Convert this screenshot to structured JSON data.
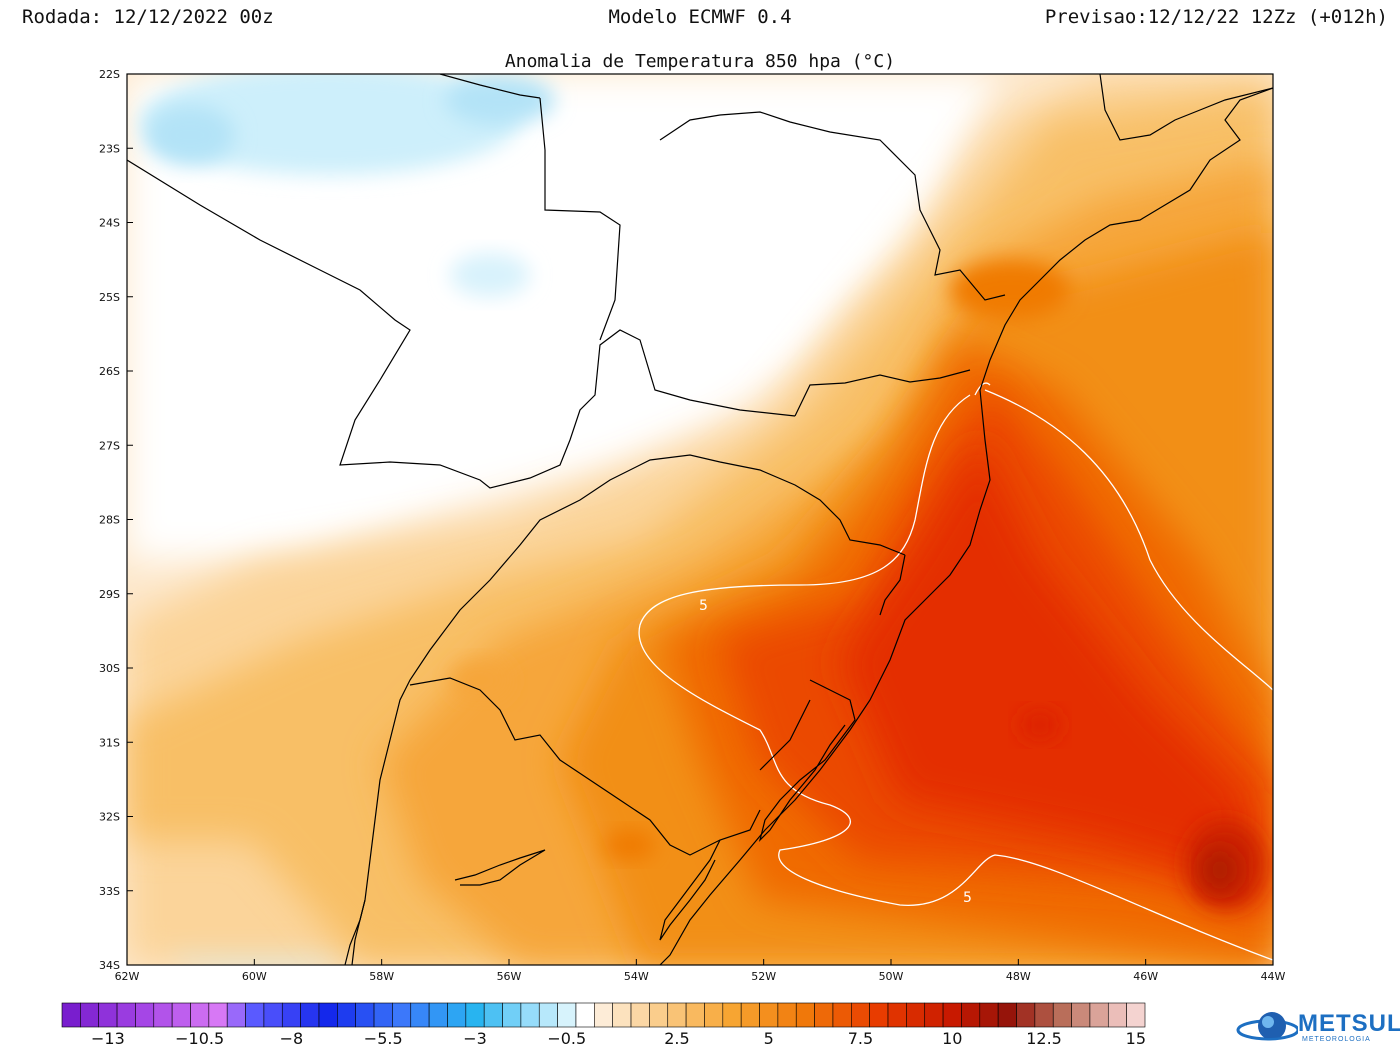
{
  "header": {
    "run": "Rodada: 12/12/2022 00z",
    "model": "Modelo ECMWF 0.4",
    "forecast": "Previsao:12/12/22 12Zz (+012h)"
  },
  "map_title": "Anomalia de Temperatura 850 hpa (°C)",
  "axes": {
    "lat_labels": [
      "22S",
      "23S",
      "24S",
      "25S",
      "26S",
      "27S",
      "28S",
      "29S",
      "30S",
      "31S",
      "32S",
      "33S",
      "34S"
    ],
    "lon_labels": [
      "62W",
      "60W",
      "58W",
      "56W",
      "54W",
      "52W",
      "50W",
      "48W",
      "46W",
      "44W"
    ],
    "lat_range": [
      -34,
      -22
    ],
    "lon_range": [
      -62,
      -44
    ]
  },
  "contour_labels": [
    "5",
    "5"
  ],
  "colorbar": {
    "min": -14.5,
    "max": 15.5,
    "step": 0.5,
    "labels": [
      "-13",
      "-10.5",
      "-8",
      "-5.5",
      "-3",
      "-0.5",
      "2.5",
      "5",
      "7.5",
      "10",
      "12.5",
      "15"
    ],
    "label_values": [
      -13,
      -10.5,
      -8,
      -5.5,
      -3,
      -0.5,
      2.5,
      5,
      7.5,
      10,
      12.5,
      15
    ]
  },
  "colors": {
    "anomaly_peak": "#e62a00",
    "zero": "#ffffff",
    "cool": "#bfe8fa"
  },
  "logo": {
    "name": "METSUL",
    "tagline": "METEOROLOGIA"
  }
}
